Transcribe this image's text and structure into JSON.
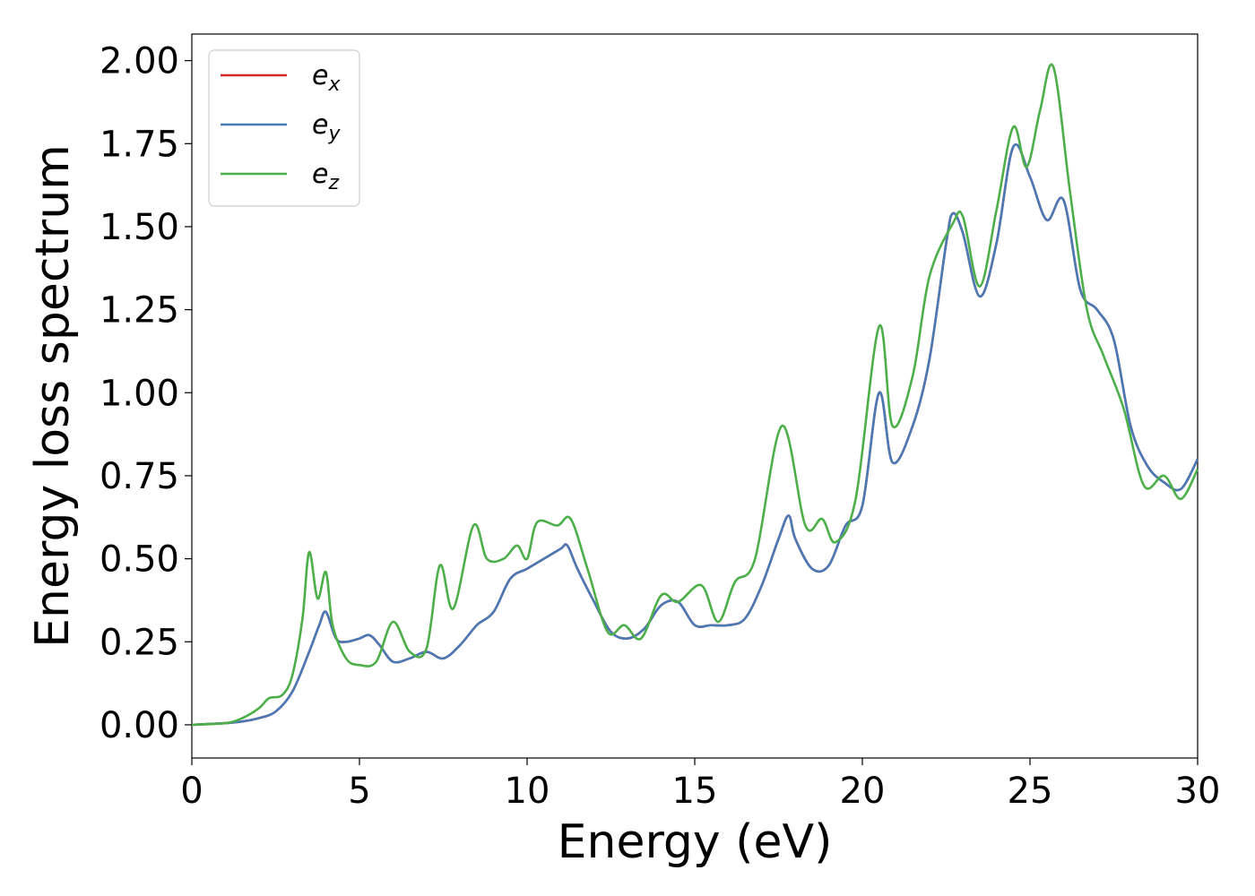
{
  "chart_data": {
    "type": "line",
    "xlabel": "Energy (eV)",
    "ylabel": "Energy loss spectrum",
    "xlim": [
      0,
      30
    ],
    "ylim": [
      -0.1,
      2.08
    ],
    "xticks": [
      0,
      5,
      10,
      15,
      20,
      25,
      30
    ],
    "xtick_labels": [
      "0",
      "5",
      "10",
      "15",
      "20",
      "25",
      "30"
    ],
    "yticks": [
      0.0,
      0.25,
      0.5,
      0.75,
      1.0,
      1.25,
      1.5,
      1.75,
      2.0
    ],
    "ytick_labels": [
      "0.00",
      "0.25",
      "0.50",
      "0.75",
      "1.00",
      "1.25",
      "1.50",
      "1.75",
      "2.00"
    ],
    "grid": false,
    "legend_position": "top-left",
    "series": [
      {
        "name": "e",
        "subscript": "x",
        "color": "#d62728",
        "x": [
          0,
          1,
          1.5,
          2,
          2.5,
          3,
          3.5,
          3.8,
          4,
          4.3,
          4.6,
          5,
          5.3,
          5.6,
          6,
          6.5,
          7,
          7.5,
          8,
          8.5,
          9,
          9.5,
          10,
          10.5,
          11,
          11.2,
          11.5,
          12,
          12.5,
          13,
          13.5,
          14,
          14.5,
          15,
          15.5,
          16,
          16.5,
          17,
          17.5,
          17.8,
          18,
          18.5,
          19,
          19.5,
          20,
          20.5,
          20.9,
          21.5,
          22,
          22.5,
          22.7,
          23,
          23.5,
          24,
          24.5,
          25,
          25.5,
          26,
          26.5,
          27,
          27.5,
          28,
          28.5,
          29,
          29.5,
          30
        ],
        "y": [
          0,
          0.005,
          0.01,
          0.02,
          0.04,
          0.1,
          0.22,
          0.3,
          0.34,
          0.26,
          0.25,
          0.26,
          0.27,
          0.24,
          0.19,
          0.2,
          0.22,
          0.2,
          0.24,
          0.3,
          0.34,
          0.44,
          0.47,
          0.5,
          0.53,
          0.54,
          0.47,
          0.37,
          0.28,
          0.26,
          0.29,
          0.36,
          0.37,
          0.3,
          0.3,
          0.3,
          0.32,
          0.42,
          0.56,
          0.63,
          0.56,
          0.47,
          0.48,
          0.6,
          0.66,
          1.0,
          0.79,
          0.9,
          1.1,
          1.45,
          1.54,
          1.48,
          1.29,
          1.45,
          1.74,
          1.65,
          1.52,
          1.58,
          1.31,
          1.25,
          1.16,
          0.9,
          0.78,
          0.73,
          0.71,
          0.8
        ]
      },
      {
        "name": "e",
        "subscript": "y",
        "color": "#4a7ab5",
        "x": [
          0,
          1,
          1.5,
          2,
          2.5,
          3,
          3.5,
          3.8,
          4,
          4.3,
          4.6,
          5,
          5.3,
          5.6,
          6,
          6.5,
          7,
          7.5,
          8,
          8.5,
          9,
          9.5,
          10,
          10.5,
          11,
          11.2,
          11.5,
          12,
          12.5,
          13,
          13.5,
          14,
          14.5,
          15,
          15.5,
          16,
          16.5,
          17,
          17.5,
          17.8,
          18,
          18.5,
          19,
          19.5,
          20,
          20.5,
          20.9,
          21.5,
          22,
          22.5,
          22.7,
          23,
          23.5,
          24,
          24.5,
          25,
          25.5,
          26,
          26.5,
          27,
          27.5,
          28,
          28.5,
          29,
          29.5,
          30
        ],
        "y": [
          0,
          0.005,
          0.01,
          0.02,
          0.04,
          0.1,
          0.22,
          0.3,
          0.34,
          0.26,
          0.25,
          0.26,
          0.27,
          0.24,
          0.19,
          0.2,
          0.22,
          0.2,
          0.24,
          0.3,
          0.34,
          0.44,
          0.47,
          0.5,
          0.53,
          0.54,
          0.47,
          0.37,
          0.28,
          0.26,
          0.29,
          0.36,
          0.37,
          0.3,
          0.3,
          0.3,
          0.32,
          0.42,
          0.56,
          0.63,
          0.56,
          0.47,
          0.48,
          0.6,
          0.66,
          1.0,
          0.79,
          0.9,
          1.1,
          1.45,
          1.54,
          1.48,
          1.29,
          1.45,
          1.74,
          1.65,
          1.52,
          1.58,
          1.31,
          1.25,
          1.16,
          0.9,
          0.78,
          0.73,
          0.71,
          0.8
        ]
      },
      {
        "name": "e",
        "subscript": "z",
        "color": "#4daf4a",
        "x": [
          0,
          1,
          1.5,
          2,
          2.3,
          2.7,
          3,
          3.3,
          3.5,
          3.75,
          4,
          4.2,
          4.6,
          5,
          5.5,
          6,
          6.5,
          7,
          7.4,
          7.8,
          8.4,
          8.8,
          9.3,
          9.7,
          10,
          10.3,
          10.9,
          11.3,
          11.8,
          12.4,
          12.9,
          13.4,
          14,
          14.5,
          15.2,
          15.7,
          16.2,
          16.8,
          17.6,
          18.3,
          18.8,
          19.2,
          19.8,
          20.5,
          20.9,
          21.5,
          22,
          22.7,
          23,
          23.5,
          24,
          24.5,
          24.9,
          25.3,
          25.7,
          26.2,
          26.7,
          27.2,
          27.8,
          28.4,
          29,
          29.5,
          30
        ],
        "y": [
          0,
          0.005,
          0.02,
          0.05,
          0.08,
          0.09,
          0.15,
          0.32,
          0.52,
          0.38,
          0.46,
          0.3,
          0.2,
          0.18,
          0.19,
          0.31,
          0.22,
          0.23,
          0.48,
          0.35,
          0.6,
          0.5,
          0.5,
          0.54,
          0.5,
          0.61,
          0.6,
          0.62,
          0.47,
          0.28,
          0.3,
          0.26,
          0.39,
          0.37,
          0.42,
          0.31,
          0.43,
          0.5,
          0.9,
          0.6,
          0.62,
          0.55,
          0.68,
          1.2,
          0.9,
          1.05,
          1.35,
          1.51,
          1.53,
          1.32,
          1.55,
          1.8,
          1.68,
          1.85,
          1.98,
          1.6,
          1.25,
          1.11,
          0.95,
          0.72,
          0.75,
          0.68,
          0.77
        ]
      }
    ]
  }
}
